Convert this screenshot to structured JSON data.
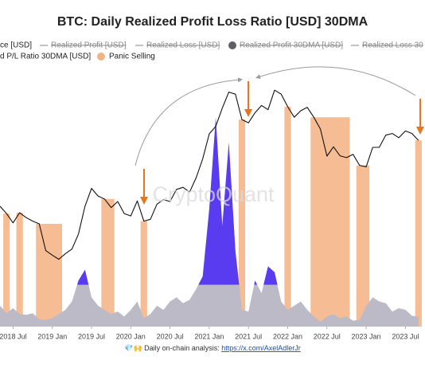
{
  "chart_data": {
    "type": "line",
    "title": "BTC: Daily Realized Profit Loss Ratio [USD] 30DMA",
    "x": [
      "2018-05",
      "2018-06",
      "2018-07",
      "2018-08",
      "2018-09",
      "2018-10",
      "2018-11",
      "2018-12",
      "2019-01",
      "2019-02",
      "2019-03",
      "2019-04",
      "2019-05",
      "2019-06",
      "2019-07",
      "2019-08",
      "2019-09",
      "2019-10",
      "2019-11",
      "2019-12",
      "2020-01",
      "2020-02",
      "2020-03",
      "2020-04",
      "2020-05",
      "2020-06",
      "2020-07",
      "2020-08",
      "2020-09",
      "2020-10",
      "2020-11",
      "2020-12",
      "2021-01",
      "2021-02",
      "2021-03",
      "2021-04",
      "2021-05",
      "2021-06",
      "2021-07",
      "2021-08",
      "2021-09",
      "2021-10",
      "2021-11",
      "2021-12",
      "2022-01",
      "2022-02",
      "2022-03",
      "2022-04",
      "2022-05",
      "2022-06",
      "2022-07",
      "2022-08",
      "2022-09",
      "2022-10",
      "2022-11",
      "2022-12",
      "2023-01",
      "2023-02",
      "2023-03",
      "2023-04",
      "2023-05",
      "2023-06",
      "2023-07",
      "2023-08",
      "2023-09"
    ],
    "xlim": [
      "2018-05",
      "2023-10"
    ],
    "xticks": [
      {
        "value": "2018-07",
        "label": "2018 Jul"
      },
      {
        "value": "2019-01",
        "label": "2019 Jan"
      },
      {
        "value": "2019-07",
        "label": "2019 Jul"
      },
      {
        "value": "2020-01",
        "label": "2020 Jan"
      },
      {
        "value": "2020-07",
        "label": "2020 Jul"
      },
      {
        "value": "2021-01",
        "label": "2021 Jan"
      },
      {
        "value": "2021-07",
        "label": "2021 Jul"
      },
      {
        "value": "2022-01",
        "label": "2022 Jan"
      },
      {
        "value": "2022-07",
        "label": "2022 Jul"
      },
      {
        "value": "2023-01",
        "label": "2023 Jan"
      },
      {
        "value": "2023-07",
        "label": "2023 Jul"
      }
    ],
    "ylim": [
      1100,
      78000
    ],
    "log_scale": true,
    "y2lim": [
      0,
      30
    ],
    "series": [
      {
        "name": "ce [USD]",
        "color": "#111111",
        "values": [
          8500,
          7500,
          6400,
          7600,
          7000,
          6600,
          6300,
          4000,
          3700,
          3450,
          3800,
          4100,
          5300,
          8500,
          11500,
          10100,
          9600,
          8300,
          9200,
          7500,
          7200,
          9300,
          6600,
          6800,
          8800,
          9500,
          9200,
          11300,
          11700,
          10800,
          13800,
          19000,
          29000,
          33000,
          45000,
          59000,
          57000,
          37000,
          35000,
          41500,
          47000,
          43800,
          61000,
          57000,
          46000,
          38500,
          43000,
          45500,
          38500,
          31500,
          19900,
          23300,
          20000,
          19400,
          20500,
          17000,
          16600,
          23100,
          23100,
          28400,
          29200,
          27200,
          30500,
          29200,
          26000
        ]
      },
      {
        "name": "d P/L Ratio 30DMA [USD]",
        "color": "#bdbac8",
        "highlight_color": "#5a3cf0",
        "highlight_above": 5,
        "axis": "y2",
        "values": [
          2.5,
          1.6,
          2.2,
          1.5,
          1.4,
          1.6,
          0.9,
          0.8,
          1.0,
          1.5,
          2.0,
          3.0,
          5.5,
          6.8,
          3.5,
          2.5,
          2.0,
          1.5,
          1.8,
          1.2,
          2.0,
          3.0,
          1.0,
          1.5,
          2.5,
          2.0,
          3.0,
          3.5,
          2.8,
          3.2,
          4.5,
          6.0,
          14,
          25,
          12,
          22,
          9,
          2.0,
          1.8,
          5.5,
          4.0,
          7.2,
          6.5,
          3.0,
          2.0,
          2.5,
          3.0,
          2.0,
          1.2,
          0.6,
          1.2,
          1.5,
          1.0,
          1.2,
          0.7,
          0.8,
          2.5,
          3.5,
          3.0,
          2.8,
          1.8,
          2.2,
          2.0,
          1.3,
          1.2
        ]
      }
    ],
    "hidden_series": [
      {
        "name": "Realized Profit [USD]"
      },
      {
        "name": "Realized Loss [USD]"
      },
      {
        "name": "Realized Profit 30DMA [USD]",
        "color": "#5f5f66"
      },
      {
        "name": "Realized Loss 30"
      }
    ],
    "panic_selling": {
      "name": "Panic Selling",
      "color": "#f4b183",
      "periods": [
        [
          "2018-06",
          "2018-06"
        ],
        [
          "2018-08",
          "2018-08"
        ],
        [
          "2018-11",
          "2019-02"
        ],
        [
          "2019-09",
          "2019-10"
        ],
        [
          "2020-03",
          "2020-03"
        ],
        [
          "2021-06",
          "2021-06"
        ],
        [
          "2022-01",
          "2022-01"
        ],
        [
          "2022-05",
          "2022-10"
        ],
        [
          "2022-12",
          "2023-01"
        ],
        [
          "2023-09",
          "2023-09"
        ]
      ]
    },
    "watermark": "CryptoQuant",
    "footer_icon": "💎🙌",
    "footer_text": "Daily on-chain analysis: ",
    "footer_link": "https://x.com/AxelAdlerJr"
  }
}
